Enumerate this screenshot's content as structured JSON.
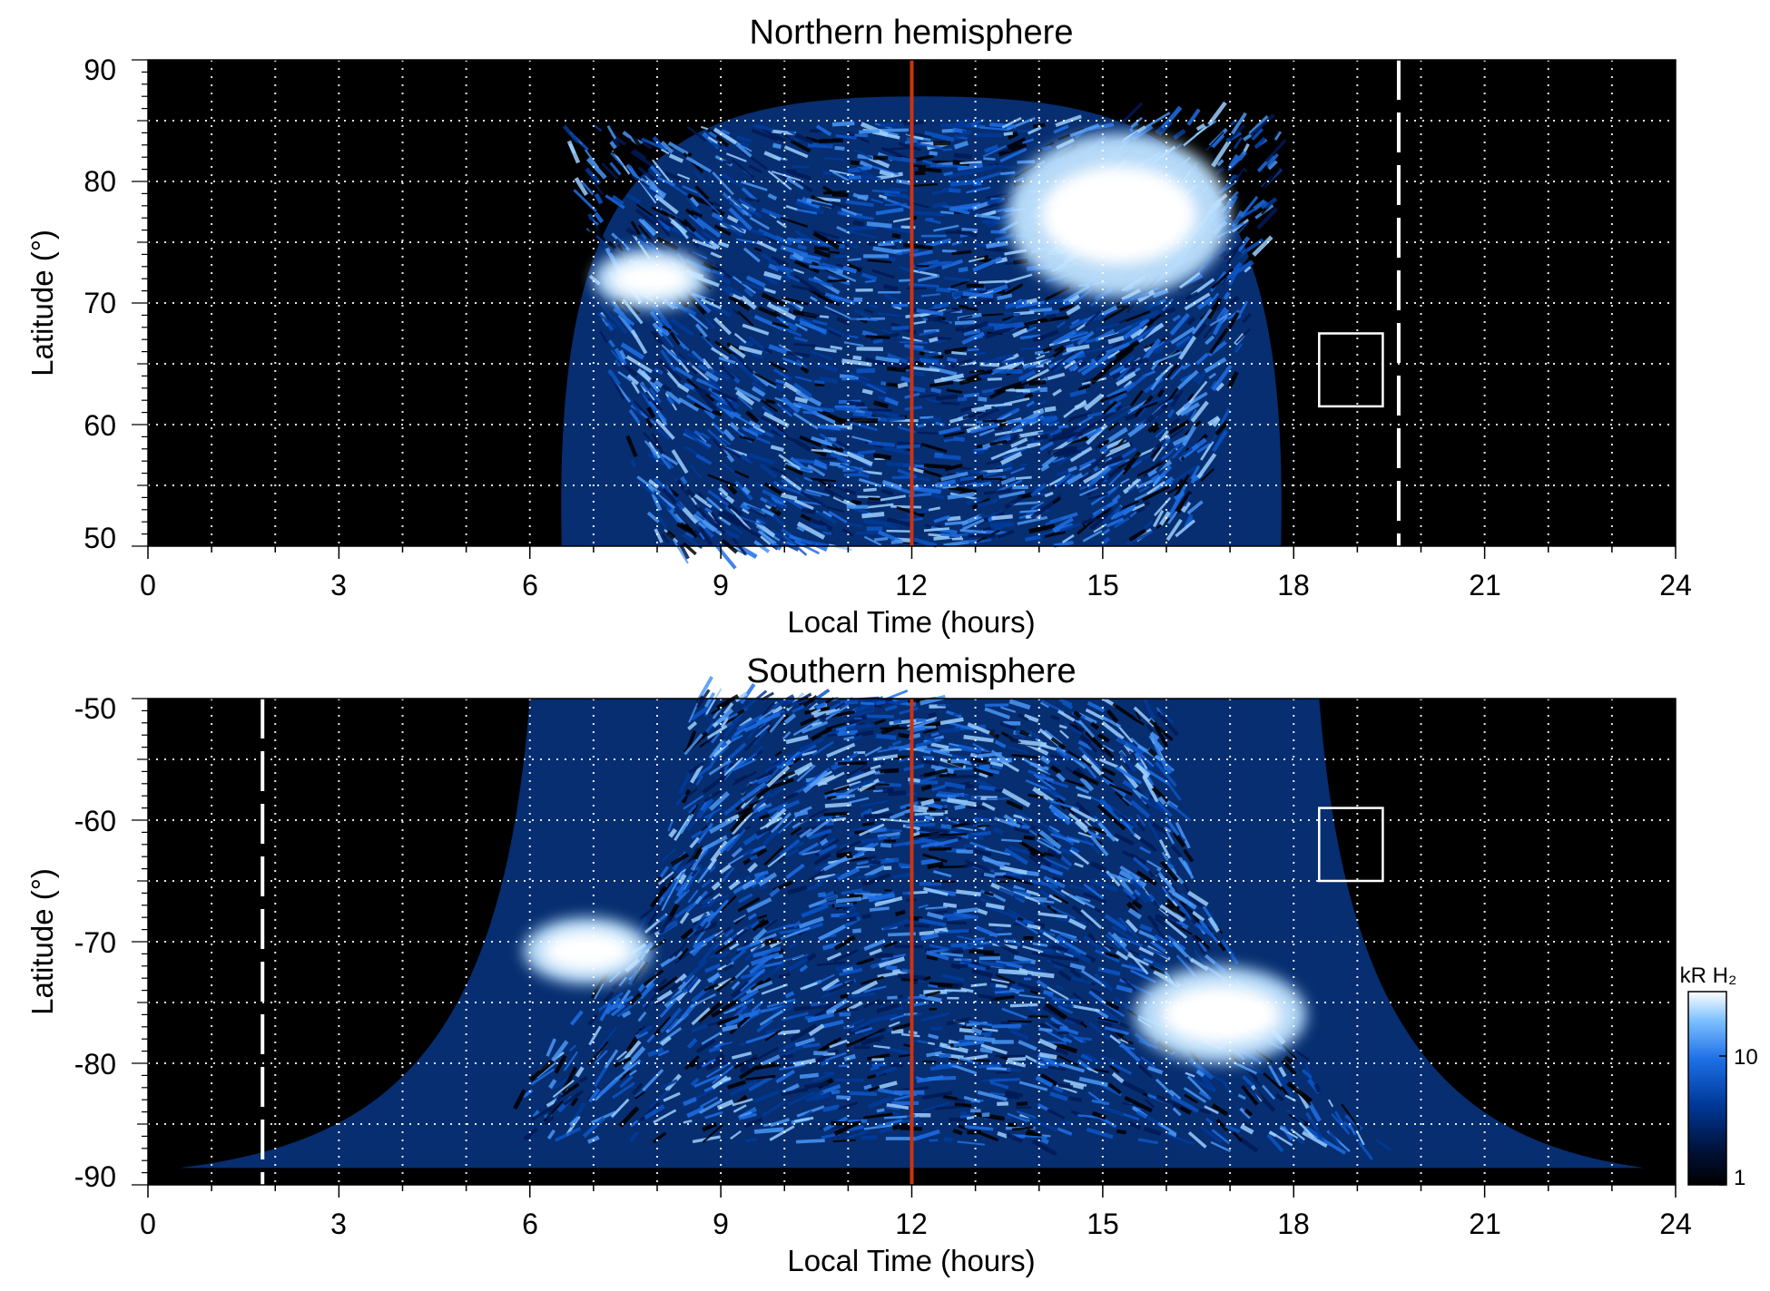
{
  "chart_data": [
    {
      "type": "heatmap",
      "title": "Northern hemisphere",
      "xlabel": "Local Time (hours)",
      "ylabel": "Latitude (°)",
      "xlim": [
        0,
        24
      ],
      "ylim": [
        50,
        90
      ],
      "xticks": [
        "0",
        "3",
        "6",
        "9",
        "12",
        "15",
        "18",
        "21",
        "24"
      ],
      "yticks": [
        "50",
        "60",
        "70",
        "80",
        "90"
      ],
      "grid": true,
      "noon_line": {
        "x": 12,
        "color": "#cc3311"
      },
      "terminator_line": {
        "x": 19.65,
        "color": "#ffffff",
        "style": "dashed"
      },
      "reference_box": {
        "x": [
          18.4,
          19.4
        ],
        "y": [
          61.5,
          67.5
        ]
      },
      "emission_region": {
        "local_time_range": [
          6.5,
          17.8
        ],
        "max_latitude": 87,
        "bright_ovals": [
          {
            "local_time": [
              7.0,
              8.8
            ],
            "latitude": [
              69.5,
              74.5
            ]
          },
          {
            "local_time": [
              13.5,
              17.0
            ],
            "latitude": [
              70.5,
              84.0
            ]
          }
        ]
      }
    },
    {
      "type": "heatmap",
      "title": "Southern hemisphere",
      "xlabel": "Local Time (hours)",
      "ylabel": "Latitude (°)",
      "xlim": [
        0,
        24
      ],
      "ylim": [
        -90,
        -50
      ],
      "xticks": [
        "0",
        "3",
        "6",
        "9",
        "12",
        "15",
        "18",
        "21",
        "24"
      ],
      "yticks": [
        "-50",
        "-60",
        "-70",
        "-80",
        "-90"
      ],
      "grid": true,
      "noon_line": {
        "x": 12,
        "color": "#cc3311"
      },
      "terminator_line": {
        "x": 1.8,
        "color": "#ffffff",
        "style": "dashed"
      },
      "reference_box": {
        "x": [
          18.4,
          19.4
        ],
        "y": [
          -65,
          -59
        ]
      },
      "emission_region": {
        "local_time_range": [
          6.0,
          18.4
        ],
        "bright_ovals": [
          {
            "local_time": [
              5.9,
              7.9
            ],
            "latitude": [
              -73.5,
              -68.0
            ]
          },
          {
            "local_time": [
              15.5,
              18.2
            ],
            "latitude": [
              -80.0,
              -72.0
            ]
          }
        ]
      }
    }
  ],
  "colorbar": {
    "label": "kR H₂",
    "scale": "log",
    "range": [
      1,
      30
    ],
    "tick_labels": [
      "1",
      "10"
    ],
    "colormap": [
      "#000000",
      "#00123a",
      "#003a9a",
      "#1e6fe6",
      "#7cc0ff",
      "#ffffff"
    ]
  }
}
